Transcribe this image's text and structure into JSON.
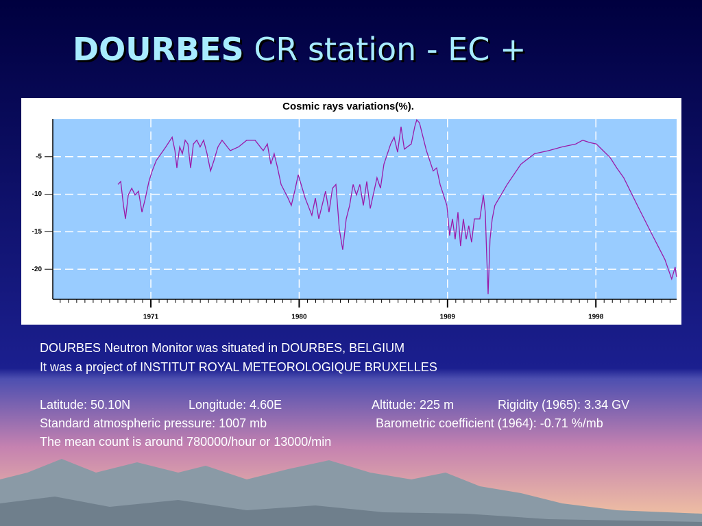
{
  "slide": {
    "title_bold": "DOURBES",
    "title_rest": "CR station - EC +",
    "lines": [
      "DOURBES Neutron Monitor was situated in DOURBES, BELGIUM",
      "It was a project of INSTITUT ROYAL METEOROLOGIQUE BRUXELLES"
    ],
    "coordinates": [
      "Latitude: 50.10N",
      "Longitude: 4.60E",
      "Altitude: 225 m",
      "Rigidity (1965): 3.34 GV"
    ],
    "pressure": [
      "Standard atmospheric pressure: 1007 mb",
      "Barometric coefficient (1964): -0.71 %/mb"
    ],
    "mean": "The mean count is around 780000/hour or 13000/min"
  },
  "chart_data": {
    "type": "line",
    "title": "Cosmic rays variations(%).",
    "x": [
      1969.0,
      1969.17,
      1969.34,
      1969.46,
      1969.63,
      1969.84,
      1970.04,
      1970.25,
      1970.46,
      1970.67,
      1970.88,
      1971.08,
      1971.33,
      1971.62,
      1971.91,
      1972.29,
      1972.46,
      1972.58,
      1972.75,
      1972.91,
      1973.08,
      1973.25,
      1973.41,
      1973.58,
      1973.79,
      1973.99,
      1974.2,
      1974.41,
      1974.62,
      1974.83,
      1975.07,
      1975.32,
      1975.82,
      1976.32,
      1976.82,
      1977.32,
      1977.82,
      1978.07,
      1978.28,
      1978.48,
      1978.69,
      1978.9,
      1979.32,
      1979.52,
      1979.73,
      1979.94,
      1980.36,
      1980.77,
      1980.98,
      1981.19,
      1981.6,
      1981.81,
      1982.02,
      1982.23,
      1982.43,
      1982.64,
      1982.85,
      1983.06,
      1983.27,
      1983.47,
      1983.68,
      1983.89,
      1984.1,
      1984.31,
      1984.72,
      1984.93,
      1985.14,
      1985.55,
      1985.76,
      1985.97,
      1986.18,
      1986.38,
      1986.8,
      1987.01,
      1987.13,
      1987.3,
      1987.72,
      1988.13,
      1988.34,
      1988.55,
      1988.96,
      1989.13,
      1989.3,
      1989.46,
      1989.63,
      1989.79,
      1989.96,
      1990.13,
      1990.29,
      1990.46,
      1990.63,
      1990.96,
      1991.17,
      1991.29,
      1991.37,
      1991.46,
      1991.58,
      1991.71,
      1991.87,
      1992.62,
      1993.45,
      1994.28,
      1995.12,
      1995.95,
      1996.78,
      1997.2,
      1997.61,
      1998.03,
      1998.44,
      1998.86,
      1999.27,
      1999.69,
      2000.52,
      2001.35,
      2002.19,
      2002.6,
      2002.81,
      2002.89
    ],
    "values": [
      -8.7,
      -8.3,
      -11.5,
      -13.3,
      -10.1,
      -9.2,
      -10.1,
      -9.6,
      -12.4,
      -10.5,
      -8.3,
      -6.9,
      -5.5,
      -4.6,
      -3.7,
      -2.4,
      -4.2,
      -6.5,
      -3.7,
      -4.6,
      -2.8,
      -3.3,
      -6.5,
      -3.3,
      -2.8,
      -3.7,
      -2.8,
      -4.6,
      -6.9,
      -5.5,
      -3.7,
      -2.8,
      -4.2,
      -3.7,
      -2.8,
      -2.8,
      -4.2,
      -3.3,
      -6.0,
      -4.6,
      -6.5,
      -8.7,
      -10.5,
      -11.5,
      -9.6,
      -7.4,
      -10.5,
      -12.8,
      -10.5,
      -13.3,
      -9.6,
      -12.4,
      -9.2,
      -8.7,
      -14.6,
      -17.4,
      -13.3,
      -11.5,
      -8.7,
      -10.1,
      -8.7,
      -11.5,
      -8.3,
      -11.9,
      -7.8,
      -9.2,
      -6.0,
      -3.3,
      -2.4,
      -4.4,
      -1.0,
      -4.0,
      -3.3,
      -1.0,
      -0.1,
      -0.5,
      -4.2,
      -6.9,
      -6.5,
      -8.7,
      -11.5,
      -15.5,
      -13.3,
      -16.0,
      -12.4,
      -16.9,
      -13.3,
      -16.0,
      -14.2,
      -16.4,
      -13.3,
      -13.3,
      -10.1,
      -12.4,
      -17.8,
      -23.3,
      -16.0,
      -13.3,
      -11.5,
      -8.7,
      -6.0,
      -4.6,
      -4.2,
      -3.7,
      -3.3,
      -2.8,
      -3.1,
      -3.3,
      -4.2,
      -5.1,
      -6.5,
      -7.8,
      -11.5,
      -15.1,
      -18.7,
      -21.3,
      -19.7,
      -21.0
    ],
    "color": "#9a1aa8",
    "xlim": [
      1965.05,
      2002.9
    ],
    "xticks": [
      1971,
      1980,
      1989,
      1998
    ],
    "ylim": [
      -24,
      0
    ],
    "yticks": [
      -20,
      -15,
      -10,
      -5
    ],
    "grid": true
  }
}
